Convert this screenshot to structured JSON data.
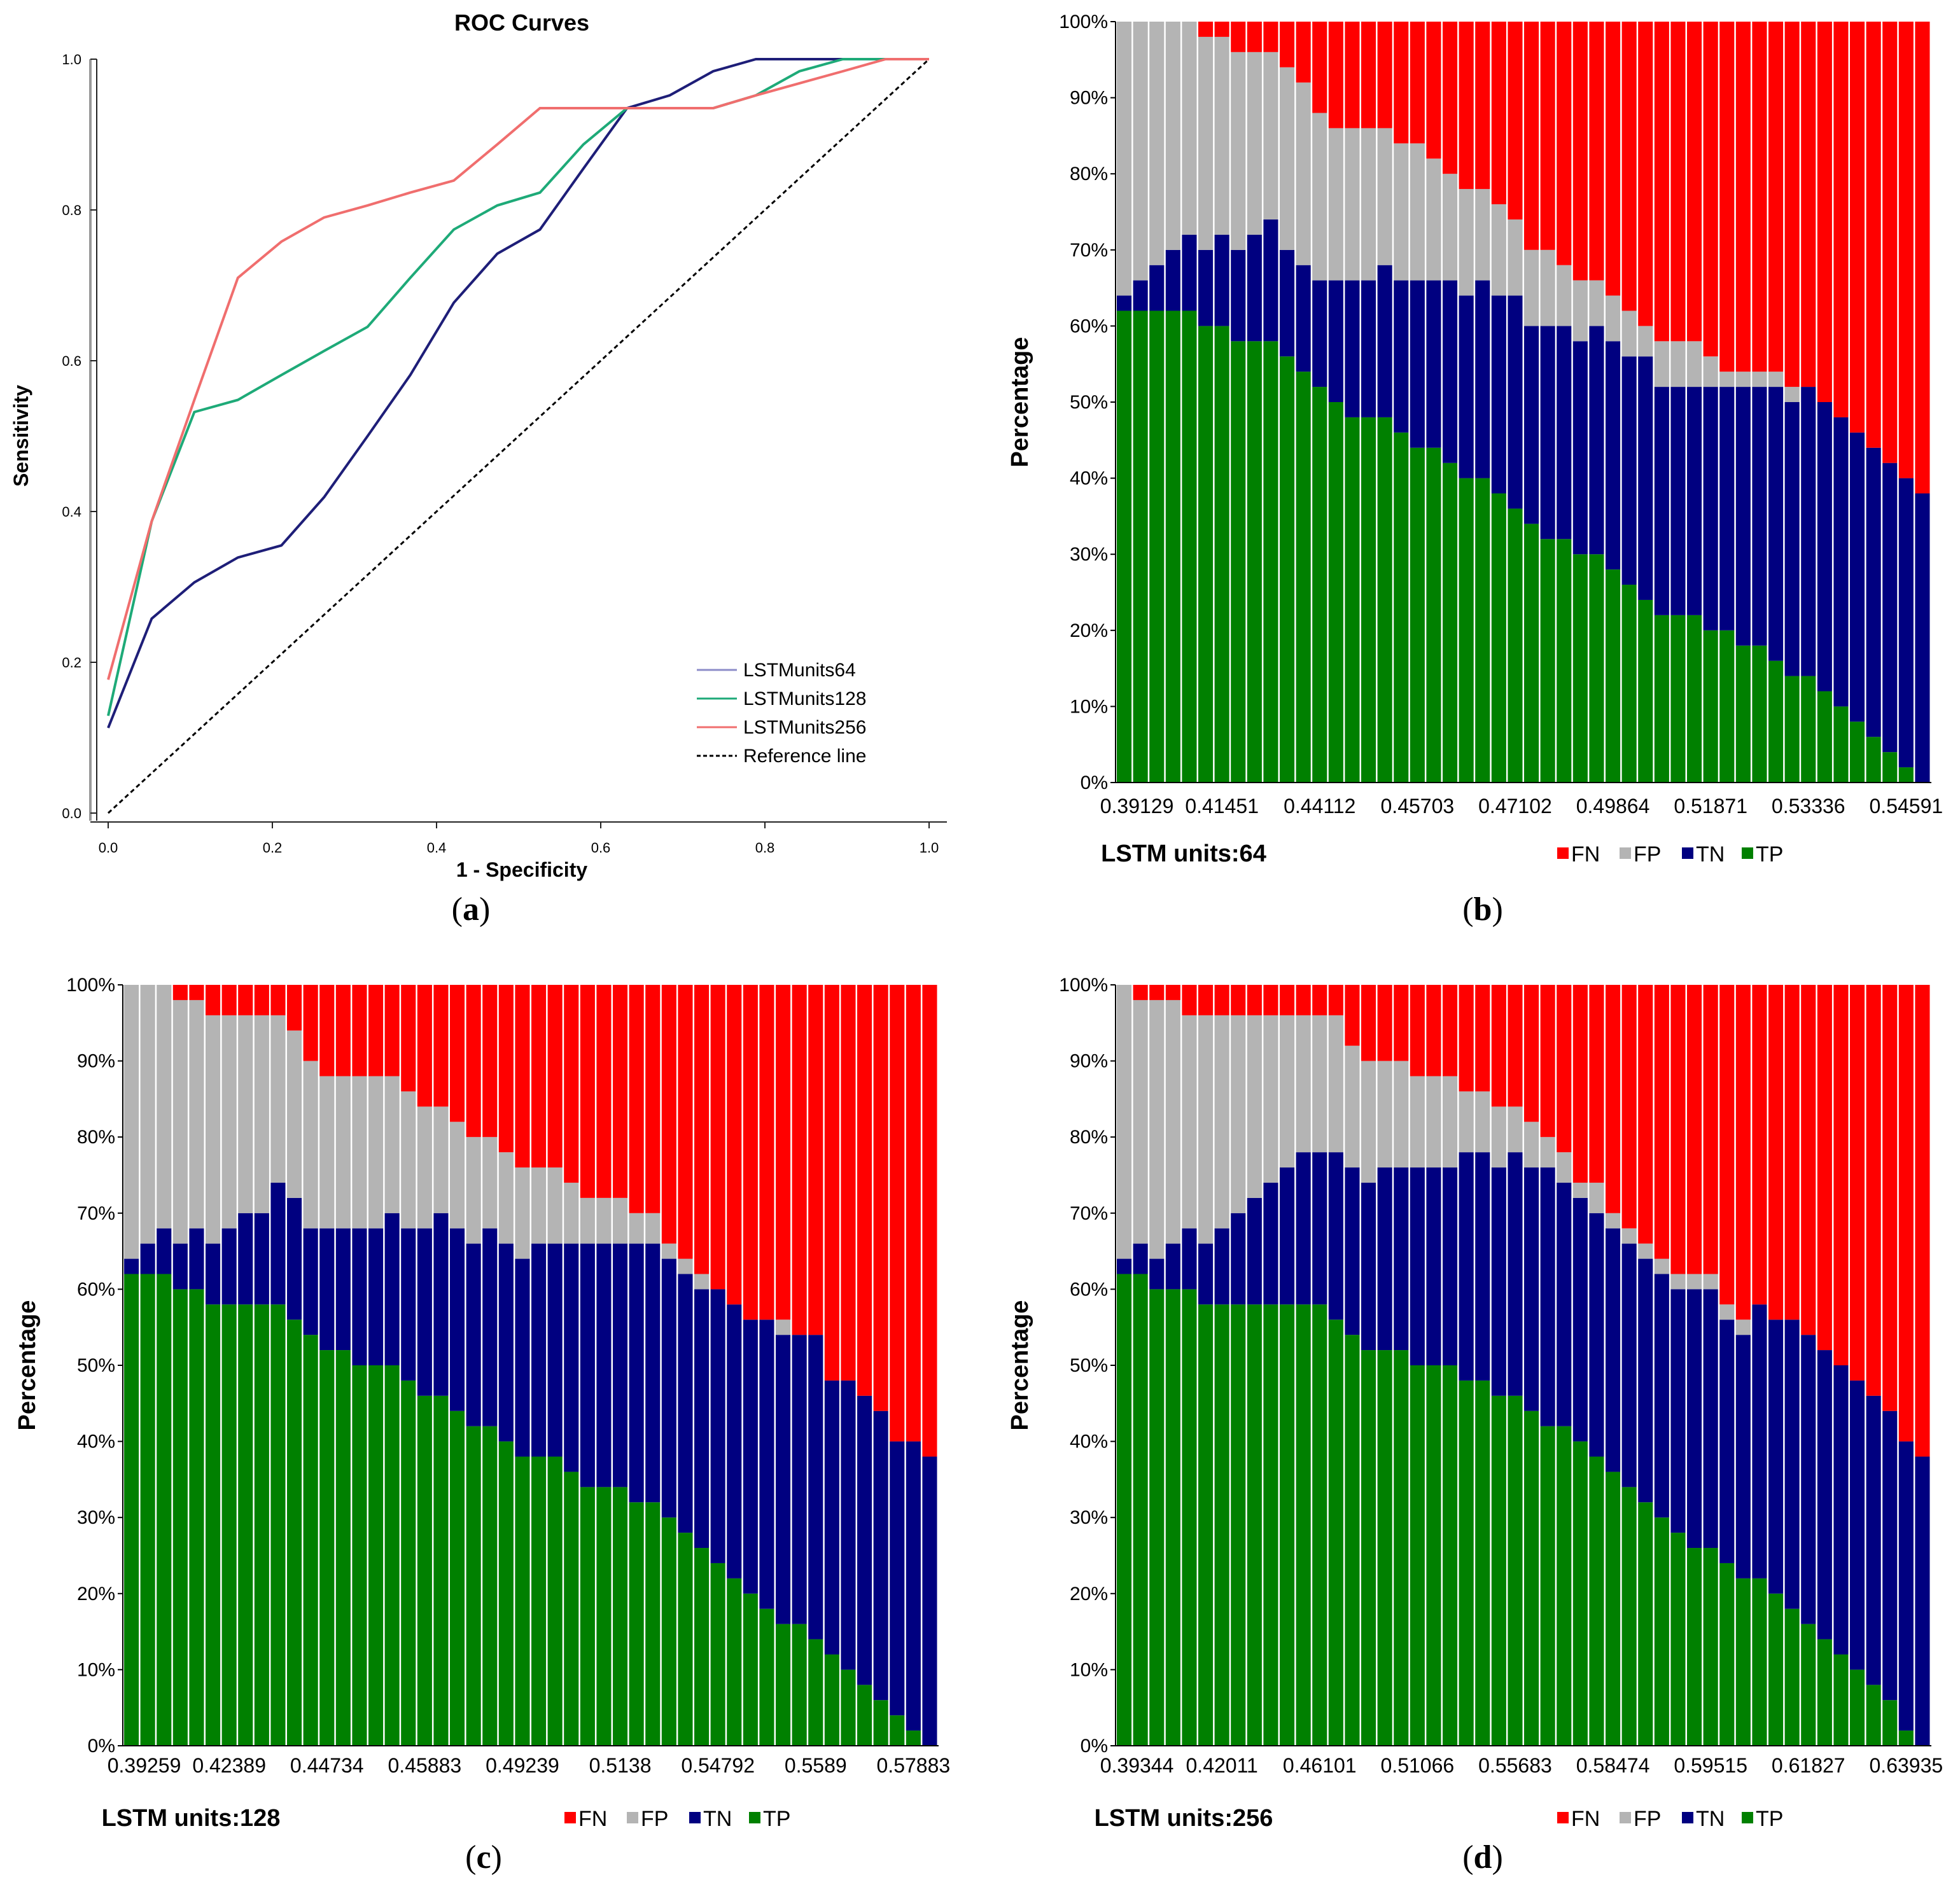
{
  "panels": {
    "a": {
      "caption_pre": "(",
      "caption_letter": "a",
      "caption_post": ")"
    },
    "b": {
      "caption_pre": "(",
      "caption_letter": "b",
      "caption_post": ")"
    },
    "c": {
      "caption_pre": "(",
      "caption_letter": "c",
      "caption_post": ")"
    },
    "d": {
      "caption_pre": "(",
      "caption_letter": "d",
      "caption_post": ")"
    }
  },
  "colors": {
    "FN": "#ff0000",
    "FP": "#b4b4b4",
    "TN": "#000080",
    "TP": "#008000",
    "roc64": "#1e1e78",
    "roc128": "#1eaa78",
    "roc256": "#f06e6e",
    "ref": "#000000"
  },
  "chart_data": [
    {
      "id": "roc",
      "type": "line",
      "title": "ROC Curves",
      "xlabel": "1 - Specificity",
      "ylabel": "Sensitivity",
      "xlim": [
        0.0,
        1.0
      ],
      "ylim": [
        0.0,
        1.0
      ],
      "xticks": [
        "0.0",
        "0.2",
        "0.4",
        "0.6",
        "0.8",
        "1.0"
      ],
      "yticks": [
        "0.0",
        "0.2",
        "0.4",
        "0.6",
        "0.8",
        "1.0"
      ],
      "series": [
        {
          "name": "LSTMunits64",
          "legend_color": "#8c8cc8",
          "line_color": "#1e1e78",
          "x": [
            0.0,
            0.053,
            0.105,
            0.158,
            0.211,
            0.263,
            0.316,
            0.368,
            0.421,
            0.474,
            0.526,
            0.579,
            0.632,
            0.684,
            0.737,
            0.789,
            0.842,
            0.895,
            0.947,
            1.0
          ],
          "y": [
            0.113,
            0.258,
            0.306,
            0.339,
            0.355,
            0.419,
            0.5,
            0.581,
            0.677,
            0.742,
            0.774,
            0.855,
            0.935,
            0.952,
            0.984,
            1.0,
            1.0,
            1.0,
            1.0,
            1.0
          ]
        },
        {
          "name": "LSTMunits128",
          "legend_color": "#1eaa78",
          "line_color": "#1eaa78",
          "x": [
            0.0,
            0.053,
            0.105,
            0.158,
            0.211,
            0.263,
            0.316,
            0.368,
            0.421,
            0.474,
            0.526,
            0.579,
            0.632,
            0.684,
            0.737,
            0.789,
            0.842,
            0.895,
            0.947,
            1.0
          ],
          "y": [
            0.129,
            0.387,
            0.532,
            0.548,
            0.581,
            0.613,
            0.645,
            0.71,
            0.774,
            0.806,
            0.823,
            0.887,
            0.935,
            0.935,
            0.935,
            0.952,
            0.984,
            1.0,
            1.0,
            1.0
          ]
        },
        {
          "name": "LSTMunits256",
          "legend_color": "#f06e6e",
          "line_color": "#f06e6e",
          "x": [
            0.0,
            0.053,
            0.105,
            0.158,
            0.211,
            0.263,
            0.316,
            0.368,
            0.421,
            0.474,
            0.526,
            0.579,
            0.632,
            0.684,
            0.737,
            0.789,
            0.842,
            0.895,
            0.947,
            1.0
          ],
          "y": [
            0.177,
            0.387,
            0.548,
            0.71,
            0.758,
            0.79,
            0.806,
            0.823,
            0.839,
            0.887,
            0.935,
            0.935,
            0.935,
            0.935,
            0.935,
            0.952,
            0.968,
            0.984,
            1.0,
            1.0
          ]
        },
        {
          "name": "Reference line",
          "legend_color": "#000000",
          "line_color": "#000000",
          "dashed": true,
          "x": [
            0.0,
            1.0
          ],
          "y": [
            0.0,
            1.0
          ]
        }
      ],
      "legend_position": "bottom-right",
      "grid": false
    },
    {
      "id": "bars64",
      "type": "bar",
      "stacked": true,
      "percent": true,
      "title": "LSTM units:64",
      "ylabel": "Percentage",
      "ylim": [
        0,
        100
      ],
      "yticks": [
        "0%",
        "10%",
        "20%",
        "30%",
        "40%",
        "50%",
        "60%",
        "70%",
        "80%",
        "90%",
        "100%"
      ],
      "xtick_labels": [
        "0.39129",
        "0.41451",
        "0.44112",
        "0.45703",
        "0.47102",
        "0.49864",
        "0.51871",
        "0.53336",
        "0.54591"
      ],
      "xtick_indices": [
        0,
        6,
        12,
        18,
        24,
        30,
        36,
        42,
        48
      ],
      "legend": [
        "FN",
        "FP",
        "TN",
        "TP"
      ],
      "series": [
        {
          "name": "TP",
          "values": [
            62,
            62,
            62,
            62,
            62,
            60,
            60,
            58,
            58,
            58,
            56,
            54,
            52,
            50,
            48,
            48,
            48,
            46,
            44,
            44,
            42,
            40,
            40,
            38,
            36,
            34,
            32,
            32,
            30,
            30,
            28,
            26,
            24,
            22,
            22,
            22,
            20,
            20,
            18,
            18,
            16,
            14,
            14,
            12,
            10,
            8,
            6,
            4,
            2,
            0
          ]
        },
        {
          "name": "TN",
          "values": [
            2,
            4,
            6,
            8,
            10,
            10,
            12,
            12,
            14,
            16,
            14,
            14,
            14,
            16,
            18,
            18,
            20,
            20,
            22,
            22,
            24,
            24,
            26,
            26,
            28,
            26,
            28,
            28,
            28,
            30,
            30,
            30,
            32,
            30,
            30,
            30,
            32,
            32,
            34,
            34,
            36,
            36,
            38,
            38,
            38,
            38,
            38,
            38,
            38,
            38
          ]
        },
        {
          "name": "FP",
          "values": [
            36,
            34,
            32,
            30,
            28,
            28,
            26,
            26,
            24,
            22,
            24,
            24,
            22,
            20,
            20,
            20,
            18,
            18,
            18,
            16,
            14,
            14,
            12,
            12,
            10,
            10,
            10,
            8,
            8,
            6,
            6,
            6,
            4,
            6,
            6,
            6,
            4,
            2,
            2,
            2,
            2,
            2,
            0,
            0,
            0,
            0,
            0,
            0,
            0,
            0
          ]
        },
        {
          "name": "FN",
          "values": [
            0,
            0,
            0,
            0,
            0,
            2,
            2,
            4,
            4,
            4,
            6,
            8,
            12,
            14,
            14,
            14,
            14,
            16,
            16,
            18,
            20,
            22,
            22,
            24,
            26,
            30,
            30,
            32,
            34,
            34,
            36,
            38,
            40,
            42,
            42,
            42,
            44,
            46,
            46,
            46,
            46,
            48,
            48,
            50,
            52,
            54,
            56,
            58,
            60,
            62
          ]
        }
      ]
    },
    {
      "id": "bars128",
      "type": "bar",
      "stacked": true,
      "percent": true,
      "title": "LSTM units:128",
      "ylabel": "Percentage",
      "ylim": [
        0,
        100
      ],
      "yticks": [
        "0%",
        "10%",
        "20%",
        "30%",
        "40%",
        "50%",
        "60%",
        "70%",
        "80%",
        "90%",
        "100%"
      ],
      "xtick_labels": [
        "0.39259",
        "0.42389",
        "0.44734",
        "0.45883",
        "0.49239",
        "0.5138",
        "0.54792",
        "0.5589",
        "0.57883"
      ],
      "xtick_indices": [
        0,
        6,
        12,
        18,
        24,
        30,
        36,
        42,
        48
      ],
      "legend": [
        "FN",
        "FP",
        "TN",
        "TP"
      ],
      "series": [
        {
          "name": "TP",
          "values": [
            62,
            62,
            62,
            60,
            60,
            58,
            58,
            58,
            58,
            58,
            56,
            54,
            52,
            52,
            50,
            50,
            50,
            48,
            46,
            46,
            44,
            42,
            42,
            40,
            38,
            38,
            38,
            36,
            34,
            34,
            34,
            32,
            32,
            30,
            28,
            26,
            24,
            22,
            20,
            18,
            16,
            16,
            14,
            12,
            10,
            8,
            6,
            4,
            2,
            0
          ]
        },
        {
          "name": "TN",
          "values": [
            2,
            4,
            6,
            6,
            8,
            8,
            10,
            12,
            12,
            16,
            16,
            14,
            16,
            16,
            18,
            18,
            20,
            20,
            22,
            24,
            24,
            24,
            26,
            26,
            26,
            28,
            28,
            30,
            32,
            32,
            32,
            34,
            34,
            34,
            34,
            34,
            36,
            36,
            36,
            38,
            38,
            38,
            40,
            36,
            38,
            38,
            38,
            36,
            38,
            38
          ]
        },
        {
          "name": "FP",
          "values": [
            36,
            34,
            32,
            32,
            30,
            30,
            28,
            26,
            26,
            22,
            22,
            22,
            20,
            20,
            20,
            20,
            18,
            18,
            16,
            14,
            14,
            14,
            12,
            12,
            12,
            10,
            10,
            8,
            6,
            6,
            6,
            4,
            4,
            2,
            2,
            2,
            0,
            0,
            0,
            0,
            2,
            0,
            0,
            0,
            0,
            0,
            0,
            0,
            0,
            0
          ]
        },
        {
          "name": "FN",
          "values": [
            0,
            0,
            0,
            2,
            2,
            4,
            4,
            4,
            4,
            4,
            6,
            10,
            12,
            12,
            12,
            12,
            12,
            14,
            16,
            16,
            18,
            20,
            20,
            22,
            24,
            24,
            24,
            26,
            28,
            28,
            28,
            30,
            30,
            34,
            36,
            38,
            40,
            42,
            44,
            44,
            44,
            46,
            46,
            52,
            52,
            54,
            56,
            60,
            60,
            62
          ]
        }
      ]
    },
    {
      "id": "bars256",
      "type": "bar",
      "stacked": true,
      "percent": true,
      "title": "LSTM units:256",
      "ylabel": "Percentage",
      "ylim": [
        0,
        100
      ],
      "yticks": [
        "0%",
        "10%",
        "20%",
        "30%",
        "40%",
        "50%",
        "60%",
        "70%",
        "80%",
        "90%",
        "100%"
      ],
      "xtick_labels": [
        "0.39344",
        "0.42011",
        "0.46101",
        "0.51066",
        "0.55683",
        "0.58474",
        "0.59515",
        "0.61827",
        "0.63935"
      ],
      "xtick_indices": [
        0,
        6,
        12,
        18,
        24,
        30,
        36,
        42,
        48
      ],
      "legend": [
        "FN",
        "FP",
        "TN",
        "TP"
      ],
      "series": [
        {
          "name": "TP",
          "values": [
            62,
            62,
            60,
            60,
            60,
            58,
            58,
            58,
            58,
            58,
            58,
            58,
            58,
            56,
            54,
            52,
            52,
            52,
            50,
            50,
            50,
            48,
            48,
            46,
            46,
            44,
            42,
            42,
            40,
            38,
            36,
            34,
            32,
            30,
            28,
            26,
            26,
            24,
            22,
            22,
            20,
            18,
            16,
            14,
            12,
            10,
            8,
            6,
            2,
            0
          ]
        },
        {
          "name": "TN",
          "values": [
            2,
            4,
            4,
            6,
            8,
            8,
            10,
            12,
            14,
            16,
            18,
            20,
            20,
            22,
            22,
            22,
            24,
            24,
            26,
            26,
            26,
            30,
            30,
            30,
            32,
            32,
            34,
            32,
            32,
            32,
            32,
            32,
            32,
            32,
            32,
            34,
            34,
            32,
            32,
            36,
            36,
            38,
            38,
            38,
            38,
            38,
            38,
            38,
            38,
            38
          ]
        },
        {
          "name": "FP",
          "values": [
            36,
            32,
            34,
            32,
            28,
            30,
            28,
            26,
            24,
            22,
            20,
            18,
            18,
            18,
            16,
            16,
            14,
            14,
            12,
            12,
            12,
            8,
            8,
            8,
            6,
            6,
            4,
            4,
            2,
            4,
            2,
            2,
            2,
            2,
            2,
            2,
            2,
            2,
            2,
            0,
            0,
            0,
            0,
            0,
            0,
            0,
            0,
            0,
            0,
            0
          ]
        },
        {
          "name": "FN",
          "values": [
            0,
            2,
            2,
            2,
            4,
            4,
            4,
            4,
            4,
            4,
            4,
            4,
            4,
            4,
            8,
            10,
            10,
            10,
            12,
            12,
            12,
            14,
            14,
            16,
            16,
            18,
            20,
            22,
            26,
            26,
            30,
            32,
            34,
            36,
            38,
            38,
            38,
            42,
            44,
            42,
            44,
            44,
            46,
            48,
            50,
            52,
            54,
            56,
            60,
            62
          ]
        }
      ]
    }
  ]
}
